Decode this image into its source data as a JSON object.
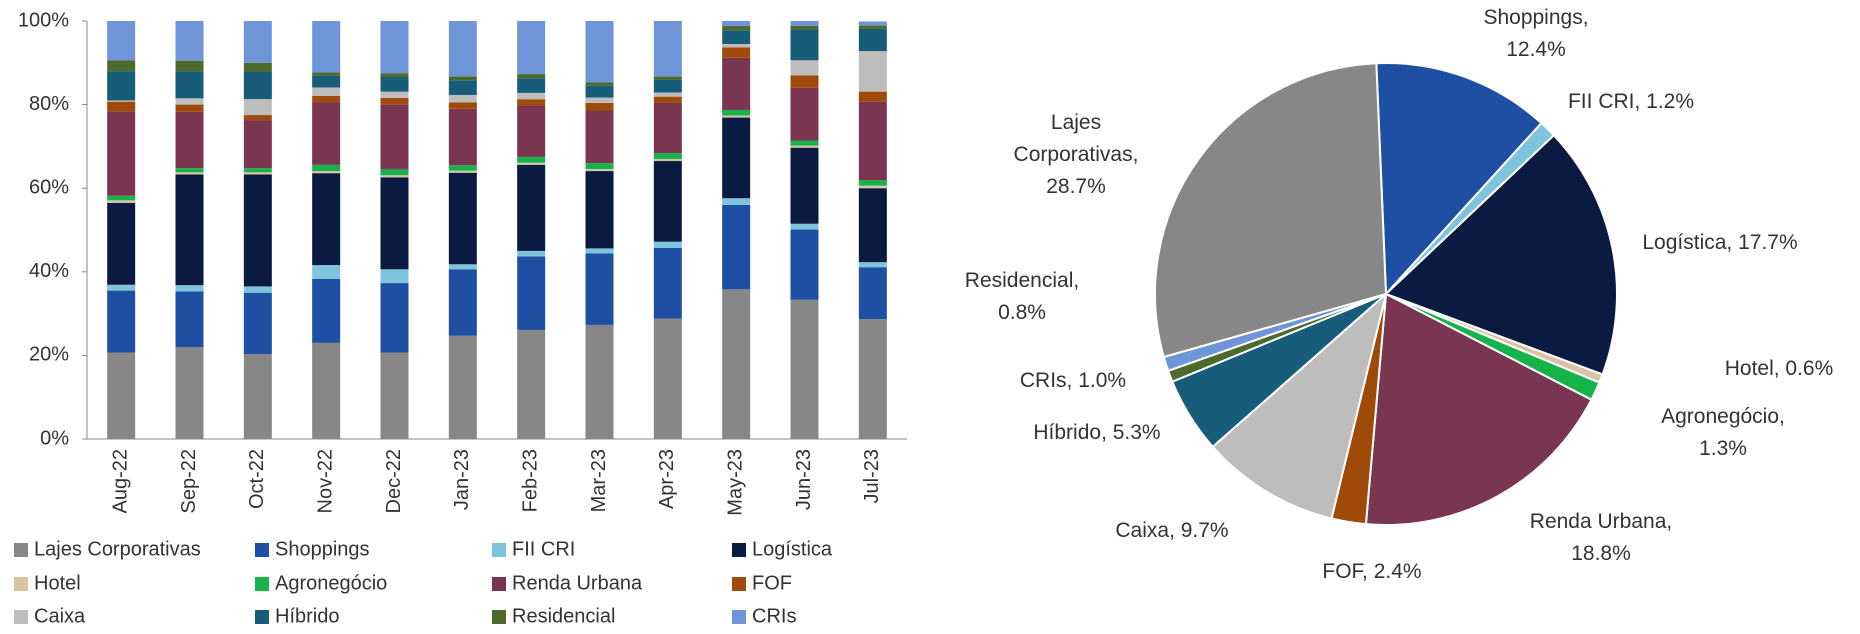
{
  "chart_data": [
    {
      "type": "bar",
      "stacked": true,
      "categories": [
        "Aug-22",
        "Sep-22",
        "Oct-22",
        "Nov-22",
        "Dec-22",
        "Jan-23",
        "Feb-23",
        "Mar-23",
        "Apr-23",
        "May-23",
        "Jun-23",
        "Jul-23"
      ],
      "ylim": [
        0,
        100
      ],
      "yticks": [
        {
          "value": 0,
          "label": "0%"
        },
        {
          "value": 20,
          "label": "20%"
        },
        {
          "value": 40,
          "label": "40%"
        },
        {
          "value": 60,
          "label": "60%"
        },
        {
          "value": 80,
          "label": "80%"
        },
        {
          "value": 100,
          "label": "100%"
        }
      ],
      "series": [
        {
          "name": "Lajes Corporativas",
          "color": "#878787",
          "values": [
            20.7,
            22,
            20.3,
            23,
            20.7,
            24.7,
            26.1,
            27.3,
            28.8,
            35.8,
            33.3,
            28.7
          ]
        },
        {
          "name": "Shoppings",
          "color": "#1f4fa3",
          "values": [
            14.8,
            13.3,
            14.7,
            15.3,
            16.6,
            15.9,
            17.6,
            17.1,
            16.9,
            20.2,
            16.8,
            12.4
          ]
        },
        {
          "name": "FII CRI",
          "color": "#7fc4dd",
          "values": [
            1.4,
            1.5,
            1.5,
            3.3,
            3.3,
            1.2,
            1.3,
            1.2,
            1.5,
            1.6,
            1.4,
            1.2
          ]
        },
        {
          "name": "Logística",
          "color": "#0b1a40",
          "values": [
            19.6,
            26.5,
            26.8,
            22,
            22,
            21.9,
            20.6,
            18.5,
            19.3,
            19.3,
            18.2,
            17.7
          ]
        },
        {
          "name": "Hotel",
          "color": "#d9c3a5",
          "values": [
            0.6,
            0.5,
            0.5,
            0.5,
            0.5,
            0.5,
            0.5,
            0.5,
            0.5,
            0.5,
            0.5,
            0.6
          ]
        },
        {
          "name": "Agronegócio",
          "color": "#16b34a",
          "values": [
            1.1,
            1,
            1,
            1.5,
            1.4,
            1.3,
            1.4,
            1.4,
            1.4,
            1.3,
            1.2,
            1.3
          ]
        },
        {
          "name": "Renda Urbana",
          "color": "#7a3550",
          "values": [
            20.2,
            13.5,
            11.5,
            15,
            15.6,
            13.5,
            12.3,
            12.6,
            12,
            12.5,
            12.6,
            18.8
          ]
        },
        {
          "name": "FOF",
          "color": "#a04a0a",
          "values": [
            2.3,
            1.7,
            1.2,
            1.5,
            1.5,
            1.5,
            1.5,
            1.8,
            1.5,
            2.5,
            3,
            2.4
          ]
        },
        {
          "name": "Caixa",
          "color": "#bdbdbd",
          "values": [
            0.3,
            1.5,
            3.8,
            2,
            1.5,
            1.8,
            1.5,
            1.3,
            1,
            0.8,
            3.6,
            9.7
          ]
        },
        {
          "name": "Híbrido",
          "color": "#175d7a",
          "values": [
            7,
            6.5,
            6.5,
            2.8,
            3.5,
            3.5,
            3.5,
            2.8,
            3,
            3.2,
            7.4,
            5.3
          ]
        },
        {
          "name": "Residencial",
          "color": "#4c6a2a",
          "values": [
            2.6,
            2.5,
            2.2,
            0.8,
            0.9,
            0.9,
            1,
            0.8,
            0.8,
            1.1,
            0.8,
            0.8
          ]
        },
        {
          "name": "CRIs",
          "color": "#6e95d8",
          "values": [
            9.4,
            9.5,
            10,
            12.3,
            12.5,
            13.3,
            12.7,
            14.7,
            13.3,
            1.2,
            1.2,
            1.0
          ]
        }
      ]
    },
    {
      "type": "pie",
      "values": [
        12.4,
        1.2,
        17.7,
        0.6,
        1.3,
        18.8,
        2.4,
        9.7,
        5.3,
        0.8,
        1.0,
        28.7
      ],
      "colors": [
        "#1f4fa3",
        "#7fc4dd",
        "#0b1a40",
        "#d9c3a5",
        "#16b34a",
        "#7a3550",
        "#a04a0a",
        "#bdbdbd",
        "#175d7a",
        "#4c6a2a",
        "#6e95d8",
        "#878787"
      ],
      "value_labels": [
        [
          "Shoppings,",
          "12.4%"
        ],
        [
          "FII CRI, 1.2%"
        ],
        [
          "Logística, 17.7%"
        ],
        [
          "Hotel, 0.6%"
        ],
        [
          "Agronegócio,",
          "1.3%"
        ],
        [
          "Renda Urbana,",
          "18.8%"
        ],
        [
          "FOF, 2.4%"
        ],
        [
          "Caixa, 9.7%"
        ],
        [
          "Híbrido, 5.3%"
        ],
        [
          "Residencial,",
          "0.8%"
        ],
        [
          "CRIs, 1.0%"
        ],
        [
          "Lajes",
          "Corporativas,",
          "28.7%"
        ]
      ]
    }
  ]
}
